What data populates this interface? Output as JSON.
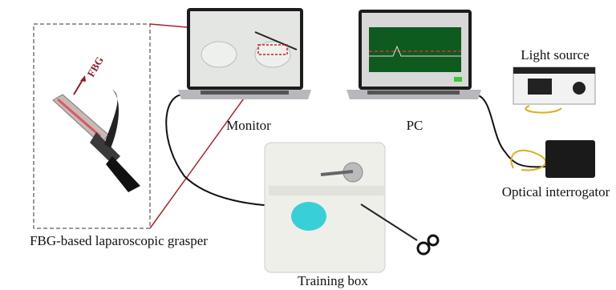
{
  "fbg_label": "FBG",
  "devices": {
    "monitor": "Monitor",
    "pc": "PC",
    "light_source": "Light source",
    "optical_interrogator": "Optical interrogator",
    "training_box": "Training box"
  },
  "grasper": "FBG-based laparoscopic grasper"
}
